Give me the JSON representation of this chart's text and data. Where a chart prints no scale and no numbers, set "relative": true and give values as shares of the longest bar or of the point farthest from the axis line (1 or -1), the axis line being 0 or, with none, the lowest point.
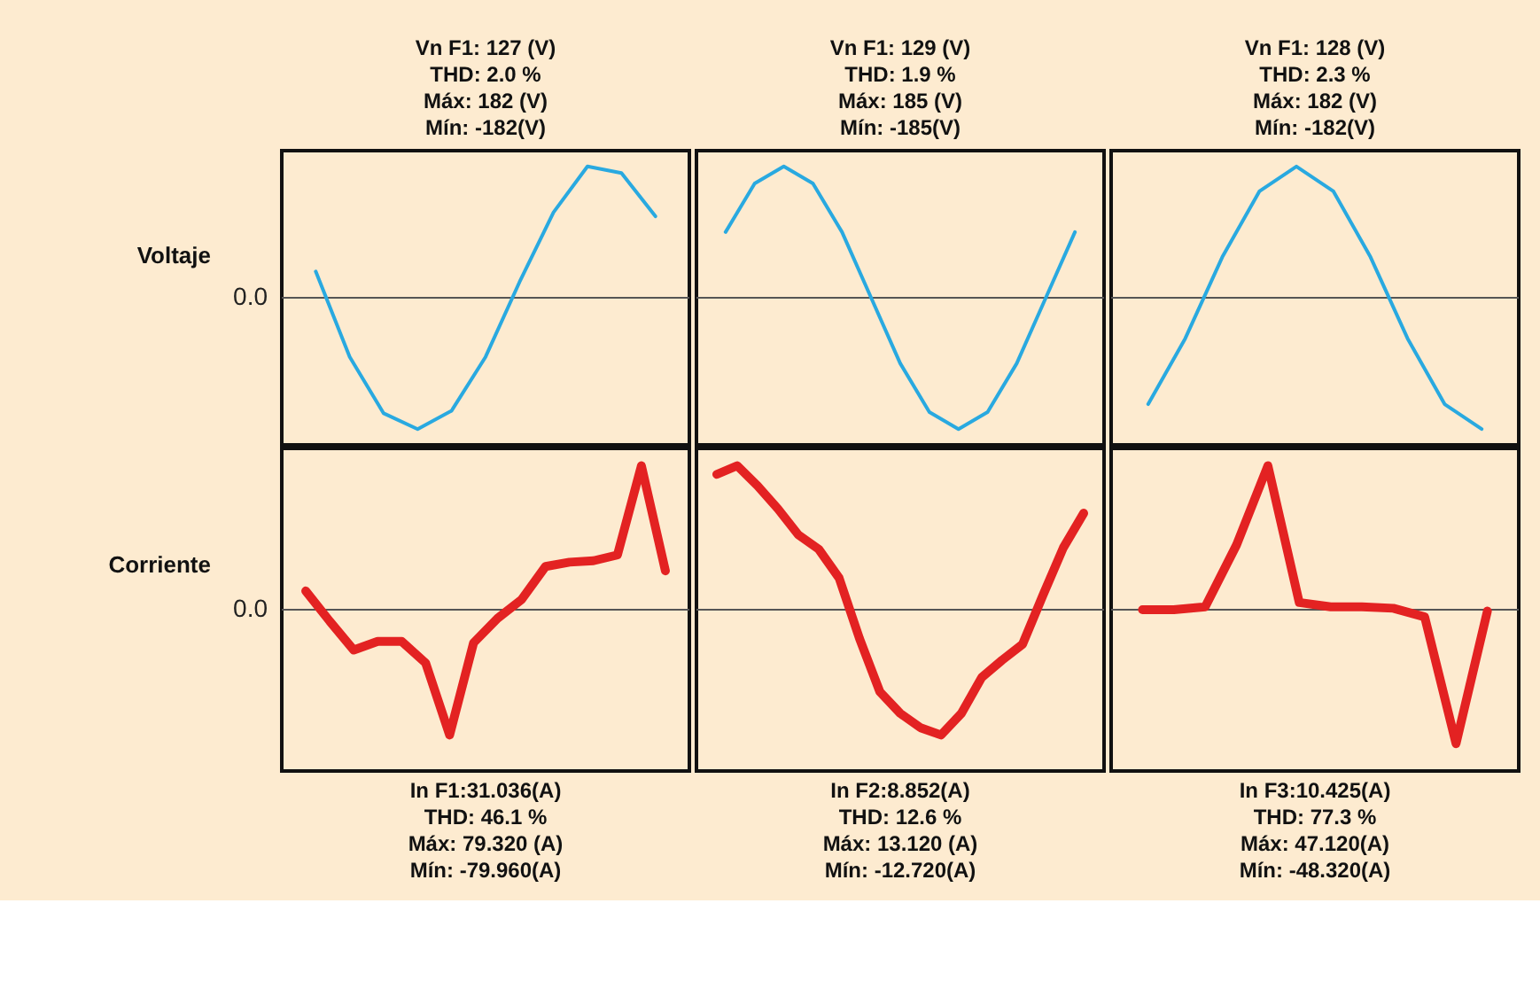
{
  "chart_data": [
    {
      "type": "line",
      "relative": true,
      "ylabel": "Voltaje",
      "annotations": [
        "Vn F1: 127 (V)",
        "THD: 2.0 %",
        "Máx: 182 (V)",
        "Mín: -182(V)"
      ],
      "categories": [
        null,
        null,
        null,
        null,
        null,
        null,
        null,
        null,
        null,
        null,
        null
      ],
      "ref_lines": [
        {
          "axis": "y",
          "value": 0,
          "label": "0.0"
        }
      ],
      "series": [
        {
          "color": "#29a9e0",
          "values": [
            0.2,
            -0.45,
            -0.88,
            -1,
            -0.86,
            -0.45,
            0.12,
            0.65,
            1,
            0.95,
            0.62
          ]
        }
      ]
    },
    {
      "type": "line",
      "relative": true,
      "annotations": [
        "Vn F1: 129 (V)",
        "THD: 1.9 %",
        "Máx: 185 (V)",
        "Mín: -185(V)"
      ],
      "categories": [
        null,
        null,
        null,
        null,
        null,
        null,
        null,
        null,
        null,
        null,
        null,
        null,
        null
      ],
      "ref_lines": [
        {
          "axis": "y",
          "value": 0
        }
      ],
      "series": [
        {
          "color": "#29a9e0",
          "values": [
            0.5,
            0.87,
            1,
            0.87,
            0.5,
            0,
            -0.5,
            -0.87,
            -1,
            -0.87,
            -0.5,
            0,
            0.5
          ]
        }
      ]
    },
    {
      "type": "line",
      "relative": true,
      "annotations": [
        "Vn F1: 128 (V)",
        "THD: 2.3 %",
        "Máx: 182 (V)",
        "Mín: -182(V)"
      ],
      "categories": [
        null,
        null,
        null,
        null,
        null,
        null,
        null,
        null,
        null,
        null
      ],
      "ref_lines": [
        {
          "axis": "y",
          "value": 0
        }
      ],
      "series": [
        {
          "color": "#29a9e0",
          "values": [
            -0.81,
            -0.31,
            0.31,
            0.81,
            1,
            0.81,
            0.31,
            -0.31,
            -0.81,
            -1
          ]
        }
      ]
    },
    {
      "type": "line",
      "relative": true,
      "ylabel": "Corriente",
      "annotations": [
        "In F1:31.036(A)",
        "THD: 46.1 %",
        "Máx: 79.320 (A)",
        "Mín: -79.960(A)"
      ],
      "categories": [
        null,
        null,
        null,
        null,
        null,
        null,
        null,
        null,
        null,
        null,
        null,
        null,
        null,
        null,
        null,
        null
      ],
      "ref_lines": [
        {
          "axis": "y",
          "value": 0,
          "label": "0.0"
        }
      ],
      "series": [
        {
          "color": "#e32222",
          "values": [
            0.13,
            -0.08,
            -0.28,
            -0.22,
            -0.22,
            -0.37,
            -0.87,
            -0.23,
            -0.06,
            0.07,
            0.3,
            0.33,
            0.34,
            0.38,
            1,
            0.27
          ]
        }
      ]
    },
    {
      "type": "line",
      "relative": true,
      "annotations": [
        "In F2:8.852(A)",
        "THD: 12.6 %",
        "Máx: 13.120 (A)",
        "Mín: -12.720(A)"
      ],
      "categories": [
        null,
        null,
        null,
        null,
        null,
        null,
        null,
        null,
        null,
        null,
        null,
        null,
        null,
        null,
        null,
        null,
        null,
        null,
        null
      ],
      "ref_lines": [
        {
          "axis": "y",
          "value": 0
        }
      ],
      "series": [
        {
          "color": "#e32222",
          "values": [
            0.94,
            1,
            0.86,
            0.7,
            0.52,
            0.42,
            0.22,
            -0.2,
            -0.57,
            -0.72,
            -0.82,
            -0.87,
            -0.72,
            -0.47,
            -0.35,
            -0.24,
            0.1,
            0.43,
            0.67
          ]
        }
      ]
    },
    {
      "type": "line",
      "relative": true,
      "annotations": [
        "In F3:10.425(A)",
        "THD: 77.3 %",
        "Máx: 47.120(A)",
        "Mín: -48.320(A)"
      ],
      "categories": [
        null,
        null,
        null,
        null,
        null,
        null,
        null,
        null,
        null,
        null,
        null,
        null
      ],
      "ref_lines": [
        {
          "axis": "y",
          "value": 0
        }
      ],
      "series": [
        {
          "color": "#e32222",
          "values": [
            0,
            0,
            0.02,
            0.45,
            1,
            0.05,
            0.02,
            0.02,
            0.01,
            -0.05,
            -0.93,
            -0.01
          ]
        }
      ]
    }
  ]
}
